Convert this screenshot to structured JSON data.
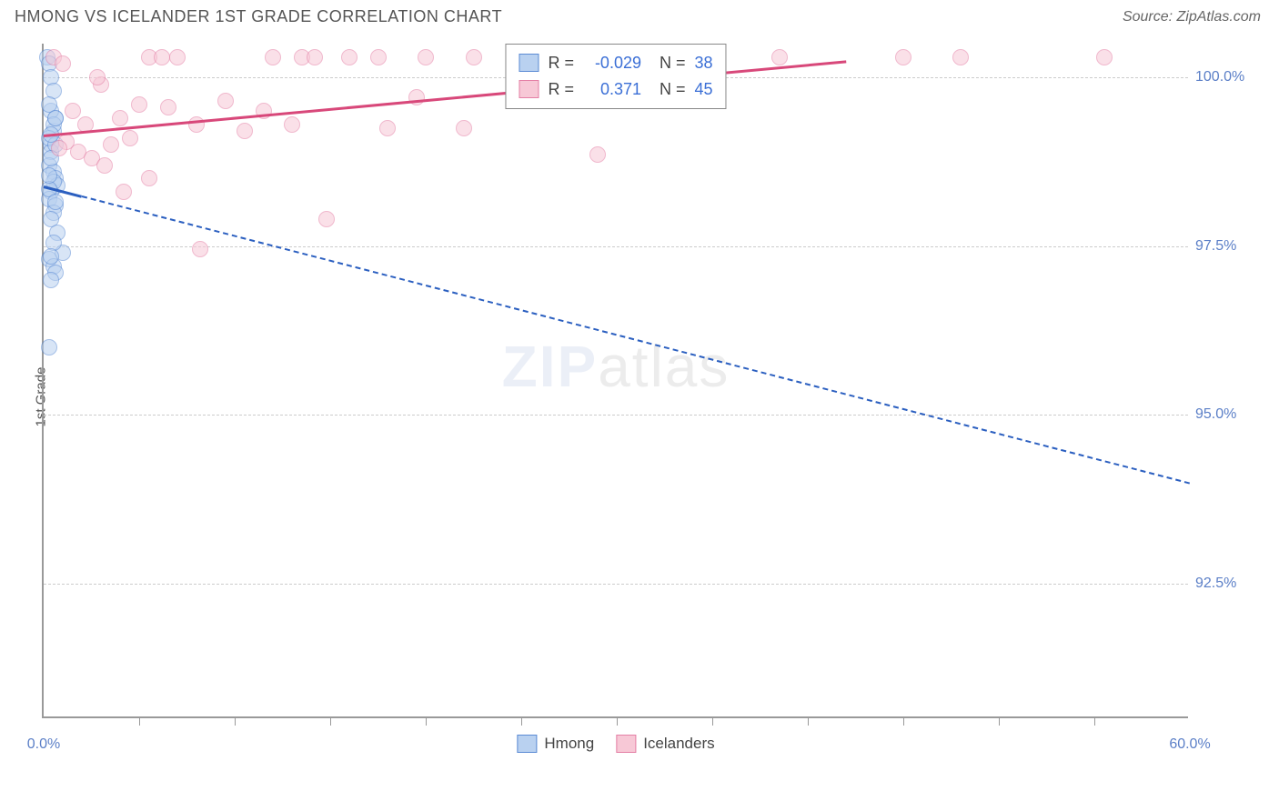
{
  "header": {
    "title": "HMONG VS ICELANDER 1ST GRADE CORRELATION CHART",
    "source": "Source: ZipAtlas.com"
  },
  "axes": {
    "ylabel": "1st Grade",
    "xmin": 0.0,
    "xmax": 60.0,
    "ymin": 90.5,
    "ymax": 100.5,
    "x_start_label": "0.0%",
    "x_end_label": "60.0%",
    "x_ticks_pct": [
      5,
      10,
      15,
      20,
      25,
      30,
      35,
      40,
      45,
      50,
      55
    ],
    "y_gridlines": [
      {
        "value": 100.0,
        "label": "100.0%"
      },
      {
        "value": 97.5,
        "label": "97.5%"
      },
      {
        "value": 95.0,
        "label": "95.0%"
      },
      {
        "value": 92.5,
        "label": "92.5%"
      }
    ]
  },
  "series": [
    {
      "name": "Hmong",
      "color_fill": "#b9d1f0",
      "color_stroke": "#5b8bd4",
      "R": "-0.029",
      "N": "38",
      "trend": {
        "x1": 0,
        "y1": 98.4,
        "x2": 60,
        "y2": 94.0,
        "dashed_after_x": 2,
        "color": "#2b5fc0"
      },
      "points": [
        {
          "x": 0.2,
          "y": 100.3
        },
        {
          "x": 0.3,
          "y": 100.2
        },
        {
          "x": 0.4,
          "y": 99.0
        },
        {
          "x": 0.5,
          "y": 99.2
        },
        {
          "x": 0.6,
          "y": 99.4
        },
        {
          "x": 0.4,
          "y": 98.9
        },
        {
          "x": 0.3,
          "y": 98.7
        },
        {
          "x": 0.5,
          "y": 98.6
        },
        {
          "x": 0.6,
          "y": 98.5
        },
        {
          "x": 0.7,
          "y": 98.4
        },
        {
          "x": 0.4,
          "y": 98.3
        },
        {
          "x": 0.3,
          "y": 98.2
        },
        {
          "x": 0.6,
          "y": 98.1
        },
        {
          "x": 0.5,
          "y": 98.0
        },
        {
          "x": 0.4,
          "y": 97.9
        },
        {
          "x": 0.7,
          "y": 97.7
        },
        {
          "x": 1.0,
          "y": 97.4
        },
        {
          "x": 0.3,
          "y": 97.3
        },
        {
          "x": 0.5,
          "y": 97.2
        },
        {
          "x": 0.6,
          "y": 97.1
        },
        {
          "x": 0.4,
          "y": 97.0
        },
        {
          "x": 0.3,
          "y": 96.0
        },
        {
          "x": 0.4,
          "y": 99.5
        },
        {
          "x": 0.5,
          "y": 99.3
        },
        {
          "x": 0.3,
          "y": 99.1
        },
        {
          "x": 0.6,
          "y": 99.0
        },
        {
          "x": 0.4,
          "y": 98.8
        },
        {
          "x": 0.5,
          "y": 98.45
        },
        {
          "x": 0.3,
          "y": 98.35
        },
        {
          "x": 0.6,
          "y": 98.15
        },
        {
          "x": 0.4,
          "y": 100.0
        },
        {
          "x": 0.5,
          "y": 99.8
        },
        {
          "x": 0.3,
          "y": 99.6
        },
        {
          "x": 0.6,
          "y": 99.4
        },
        {
          "x": 0.4,
          "y": 99.15
        },
        {
          "x": 0.3,
          "y": 98.55
        },
        {
          "x": 0.5,
          "y": 97.55
        },
        {
          "x": 0.4,
          "y": 97.35
        }
      ]
    },
    {
      "name": "Icelanders",
      "color_fill": "#f7c8d6",
      "color_stroke": "#e47fa5",
      "R": "0.371",
      "N": "45",
      "trend": {
        "x1": 0,
        "y1": 99.15,
        "x2": 42,
        "y2": 100.25,
        "dashed_after_x": 999,
        "color": "#d8487a"
      },
      "points": [
        {
          "x": 0.5,
          "y": 100.3
        },
        {
          "x": 5.5,
          "y": 100.3
        },
        {
          "x": 6.2,
          "y": 100.3
        },
        {
          "x": 7.0,
          "y": 100.3
        },
        {
          "x": 12.0,
          "y": 100.3
        },
        {
          "x": 13.5,
          "y": 100.3
        },
        {
          "x": 14.2,
          "y": 100.3
        },
        {
          "x": 16.0,
          "y": 100.3
        },
        {
          "x": 17.5,
          "y": 100.3
        },
        {
          "x": 20.0,
          "y": 100.3
        },
        {
          "x": 22.5,
          "y": 100.3
        },
        {
          "x": 27.5,
          "y": 100.3
        },
        {
          "x": 35.0,
          "y": 100.3
        },
        {
          "x": 38.5,
          "y": 100.3
        },
        {
          "x": 45.0,
          "y": 100.3
        },
        {
          "x": 48.0,
          "y": 100.3
        },
        {
          "x": 55.5,
          "y": 100.3
        },
        {
          "x": 1.5,
          "y": 99.5
        },
        {
          "x": 2.2,
          "y": 99.3
        },
        {
          "x": 3.0,
          "y": 99.9
        },
        {
          "x": 3.5,
          "y": 99.0
        },
        {
          "x": 4.0,
          "y": 99.4
        },
        {
          "x": 5.0,
          "y": 99.6
        },
        {
          "x": 6.5,
          "y": 99.55
        },
        {
          "x": 8.0,
          "y": 99.3
        },
        {
          "x": 9.5,
          "y": 99.65
        },
        {
          "x": 10.5,
          "y": 99.2
        },
        {
          "x": 13.0,
          "y": 99.3
        },
        {
          "x": 18.0,
          "y": 99.25
        },
        {
          "x": 19.5,
          "y": 99.7
        },
        {
          "x": 22.0,
          "y": 99.25
        },
        {
          "x": 1.8,
          "y": 98.9
        },
        {
          "x": 2.5,
          "y": 98.8
        },
        {
          "x": 3.2,
          "y": 98.7
        },
        {
          "x": 4.2,
          "y": 98.3
        },
        {
          "x": 5.5,
          "y": 98.5
        },
        {
          "x": 1.2,
          "y": 99.05
        },
        {
          "x": 0.8,
          "y": 98.95
        },
        {
          "x": 14.8,
          "y": 97.9
        },
        {
          "x": 29.0,
          "y": 98.85
        },
        {
          "x": 8.2,
          "y": 97.45
        },
        {
          "x": 1.0,
          "y": 100.2
        },
        {
          "x": 2.8,
          "y": 100.0
        },
        {
          "x": 4.5,
          "y": 99.1
        },
        {
          "x": 11.5,
          "y": 99.5
        }
      ]
    }
  ],
  "legend_stats": {
    "rows": [
      {
        "swatch_fill": "#b9d1f0",
        "swatch_stroke": "#5b8bd4",
        "R_label": "R =",
        "R": "-0.029",
        "N_label": "N =",
        "N": "38"
      },
      {
        "swatch_fill": "#f7c8d6",
        "swatch_stroke": "#e47fa5",
        "R_label": "R =",
        "R": "0.371",
        "N_label": "N =",
        "N": "45"
      }
    ]
  },
  "legend_bottom": [
    {
      "swatch_fill": "#b9d1f0",
      "swatch_stroke": "#5b8bd4",
      "label": "Hmong"
    },
    {
      "swatch_fill": "#f7c8d6",
      "swatch_stroke": "#e47fa5",
      "label": "Icelanders"
    }
  ],
  "watermark": {
    "bold": "ZIP",
    "thin": "atlas"
  }
}
